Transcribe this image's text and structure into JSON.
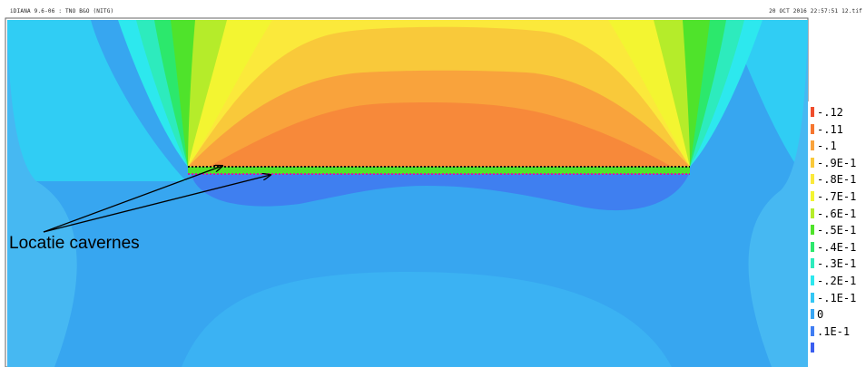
{
  "header": {
    "title_left": "iDIANA 9.6-06 : TNO B&O (NITG)",
    "title_right": "20 OCT 2016 22:57:51 12.tif"
  },
  "annotation": {
    "label": "Locatie cavernes"
  },
  "legend": {
    "items": [
      {
        "label": "-.12",
        "color": "#ef4d2c"
      },
      {
        "label": "-.11",
        "color": "#f6762f"
      },
      {
        "label": "-.1",
        "color": "#f9a33c"
      },
      {
        "label": "-.9E-1",
        "color": "#f9c93a"
      },
      {
        "label": "-.8E-1",
        "color": "#fbe93b"
      },
      {
        "label": "-.7E-1",
        "color": "#f3f531"
      },
      {
        "label": "-.6E-1",
        "color": "#b5ec2a"
      },
      {
        "label": "-.5E-1",
        "color": "#4fe32b"
      },
      {
        "label": "-.4E-1",
        "color": "#2ce86c"
      },
      {
        "label": "-.3E-1",
        "color": "#2debbd"
      },
      {
        "label": "-.2E-1",
        "color": "#2de8ee"
      },
      {
        "label": "-.1E-1",
        "color": "#34c7f5"
      },
      {
        "label": "0",
        "color": "#38a6f4"
      },
      {
        "label": ".1E-1",
        "color": "#3f7df3"
      },
      {
        "label": "",
        "color": "#3a5ef0"
      }
    ]
  },
  "colors": {
    "background_field": "#37a6f0",
    "deep_blue": "#3f7ff0",
    "cyan": "#30cdf4",
    "orange": "#f9a33c",
    "dark_orange": "#f7893a",
    "line_black": "#111111",
    "line_magenta": "#d020a0"
  }
}
